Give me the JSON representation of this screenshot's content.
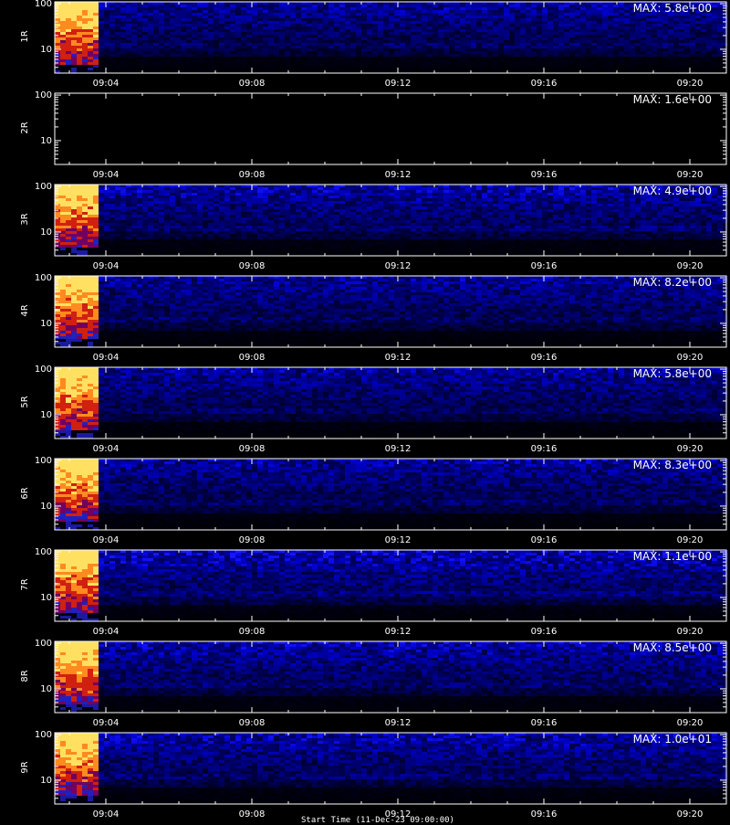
{
  "chart_data": {
    "type": "heatmap",
    "panels": [
      {
        "label": "1R",
        "max_label": "MAX: 5.8e+00",
        "active": true,
        "blue": 0.55
      },
      {
        "label": "2R",
        "max_label": "MAX: 1.6e+00",
        "active": false,
        "blue": 0.0
      },
      {
        "label": "3R",
        "max_label": "MAX: 4.9e+00",
        "active": true,
        "blue": 0.6
      },
      {
        "label": "4R",
        "max_label": "MAX: 8.2e+00",
        "active": true,
        "blue": 0.55
      },
      {
        "label": "5R",
        "max_label": "MAX: 5.8e+00",
        "active": true,
        "blue": 0.55
      },
      {
        "label": "6R",
        "max_label": "MAX: 8.3e+00",
        "active": true,
        "blue": 0.55
      },
      {
        "label": "7R",
        "max_label": "MAX: 1.1e+00",
        "active": true,
        "blue": 0.65
      },
      {
        "label": "8R",
        "max_label": "MAX: 8.5e+00",
        "active": true,
        "blue": 0.6
      },
      {
        "label": "9R",
        "max_label": "MAX: 1.0e+01",
        "active": true,
        "blue": 0.6
      }
    ],
    "x_ticks": [
      "09:04",
      "09:08",
      "09:12",
      "09:16",
      "09:20"
    ],
    "x_tick_minutes": [
      4,
      8,
      12,
      16,
      20
    ],
    "x_range_minutes": [
      2.6,
      21.0
    ],
    "burst_end_minutes": 3.7,
    "y_scale": "log",
    "y_ticks": [
      "100",
      "10"
    ],
    "y_tick_values": [
      100,
      10
    ],
    "y_range": [
      3,
      110
    ],
    "colors": {
      "background": "#000000",
      "axis": "#ffffff"
    }
  },
  "caption": "Start Time (11-Dec-23 09:00:00)"
}
